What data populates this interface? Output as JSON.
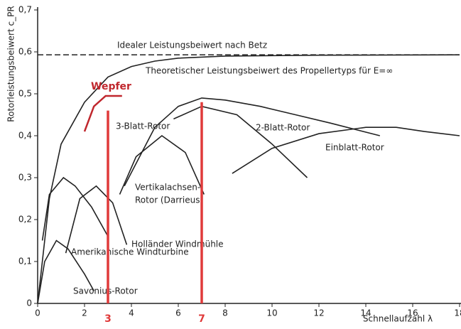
{
  "chart_data": {
    "type": "line",
    "ylabel": "Rotorleistungsbeiwert c_PR",
    "xlabel": "Schnellaufzahl λ",
    "xlim": [
      0,
      18
    ],
    "ylim": [
      0,
      0.7
    ],
    "xticks": [
      0,
      2,
      4,
      6,
      8,
      10,
      12,
      14,
      16,
      18
    ],
    "yticks": [
      0,
      {
        "value": 0.1,
        "label": "0,1"
      },
      {
        "value": 0.2,
        "label": "0,2"
      },
      {
        "value": 0.3,
        "label": "0,3"
      },
      {
        "value": 0.4,
        "label": "0,4"
      },
      {
        "value": 0.5,
        "label": "0,5"
      },
      {
        "value": 0.6,
        "label": "0,6"
      },
      {
        "value": 0.7,
        "label": "0,7"
      }
    ],
    "grid": false,
    "series": [
      {
        "name": "Idealer Leistungsbeiwert nach Betz",
        "color": "#222222",
        "dashed": true,
        "x": [
          0,
          18
        ],
        "values": [
          0.593,
          0.593
        ]
      },
      {
        "name": "Theoretischer Leistungsbeiwert des Propellertyps für E=∞",
        "color": "#222222",
        "x": [
          0,
          0.5,
          1,
          2,
          3,
          4,
          5,
          6,
          8,
          12,
          18
        ],
        "values": [
          0,
          0.25,
          0.38,
          0.48,
          0.54,
          0.565,
          0.578,
          0.585,
          0.59,
          0.592,
          0.593
        ]
      },
      {
        "name": "Wepfer",
        "color": "#c0272d",
        "x": [
          2.0,
          2.4,
          2.9,
          3.6
        ],
        "values": [
          0.41,
          0.47,
          0.495,
          0.495
        ]
      },
      {
        "name": "3-Blatt-Rotor",
        "color": "#222222",
        "x": [
          3.7,
          5,
          6,
          7,
          8,
          9.5,
          11,
          12.5,
          14.6
        ],
        "values": [
          0.28,
          0.42,
          0.47,
          0.49,
          0.485,
          0.47,
          0.45,
          0.43,
          0.4
        ]
      },
      {
        "name": "2-Blatt-Rotor",
        "color": "#222222",
        "x": [
          5.8,
          7,
          8.5,
          10,
          11.5
        ],
        "values": [
          0.44,
          0.47,
          0.45,
          0.38,
          0.3
        ]
      },
      {
        "name": "Einblatt-Rotor",
        "color": "#222222",
        "x": [
          8.3,
          10,
          12,
          14,
          15.3,
          16.5,
          18
        ],
        "values": [
          0.31,
          0.37,
          0.405,
          0.42,
          0.42,
          0.41,
          0.4
        ]
      },
      {
        "name": [
          "Vertikalachsen-",
          "Rotor (Darrieus)"
        ],
        "color": "#222222",
        "x": [
          3.5,
          4.2,
          5.3,
          6.3,
          7.1
        ],
        "values": [
          0.26,
          0.35,
          0.4,
          0.36,
          0.26
        ]
      },
      {
        "name": "Holländer Windmühle",
        "color": "#222222",
        "x": [
          1.2,
          1.8,
          2.5,
          3.2,
          3.8
        ],
        "values": [
          0.12,
          0.25,
          0.28,
          0.24,
          0.14
        ]
      },
      {
        "name": "Amerikanische Windturbine",
        "color": "#222222",
        "x": [
          0.2,
          0.5,
          1.1,
          1.6,
          2.3,
          3.0
        ],
        "values": [
          0.15,
          0.26,
          0.3,
          0.28,
          0.23,
          0.16
        ]
      },
      {
        "name": "Savonius-Rotor",
        "color": "#222222",
        "x": [
          0,
          0.3,
          0.8,
          1.3,
          2.0,
          2.4
        ],
        "values": [
          0,
          0.1,
          0.15,
          0.13,
          0.07,
          0.03
        ]
      }
    ],
    "markers": [
      {
        "x": 3,
        "y": 0.46,
        "color": "#e03a3a"
      },
      {
        "x": 7,
        "y": 0.48,
        "color": "#e03a3a"
      }
    ]
  }
}
